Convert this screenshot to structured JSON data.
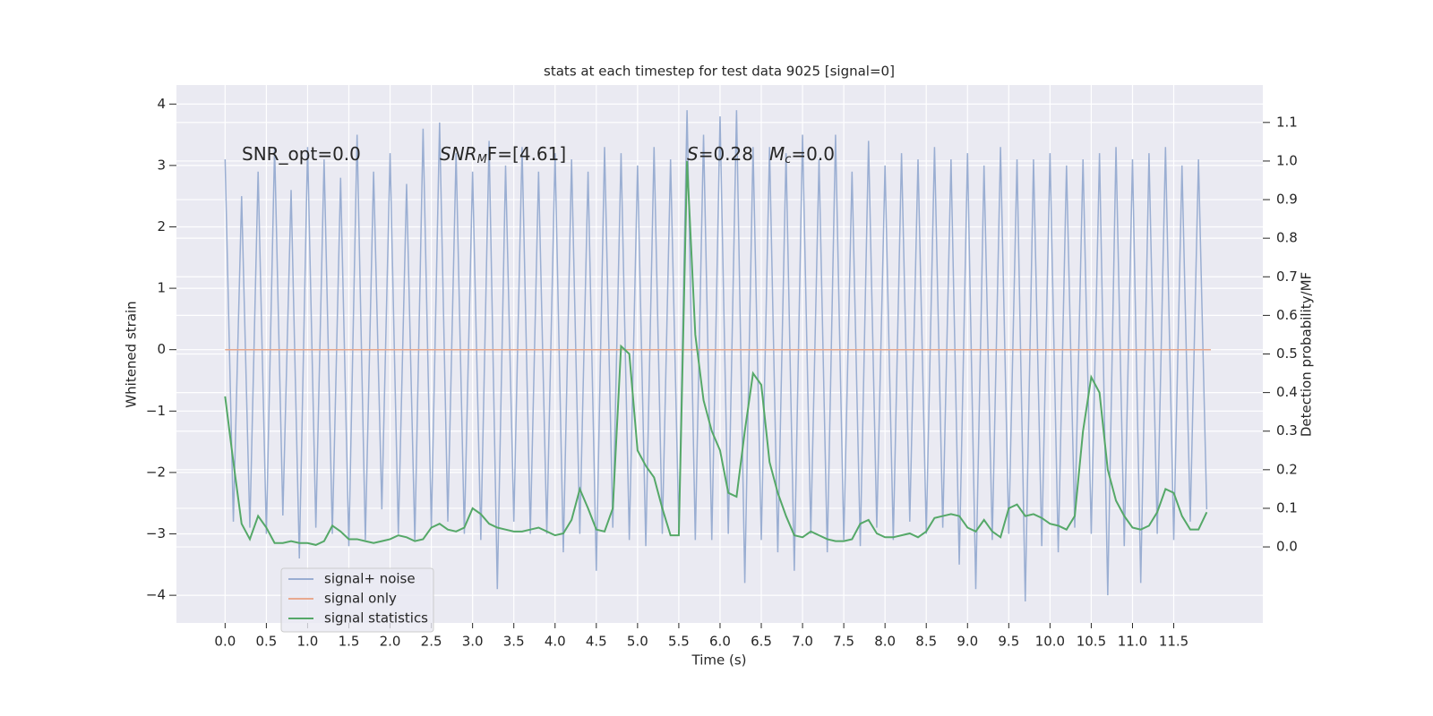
{
  "chart_data": {
    "type": "line",
    "title": "stats at each timestep for test data 9025 [signal=0]",
    "xlabel": "Time (s)",
    "ylabel": "Whitened strain",
    "y2label": "Detection probability/MF",
    "grid": true,
    "legend_position": "lower left",
    "xlim": [
      -0.59,
      12.58
    ],
    "ylim": [
      -4.45,
      4.31
    ],
    "y2lim": [
      -0.197,
      1.197
    ],
    "xticks": [
      {
        "value": 0,
        "label": "0.0"
      },
      {
        "value": 0.5,
        "label": "0.5"
      },
      {
        "value": 1,
        "label": "1.0"
      },
      {
        "value": 1.5,
        "label": "1.5"
      },
      {
        "value": 2,
        "label": "2.0"
      },
      {
        "value": 2.5,
        "label": "2.5"
      },
      {
        "value": 3,
        "label": "3.0"
      },
      {
        "value": 3.5,
        "label": "3.5"
      },
      {
        "value": 4,
        "label": "4.0"
      },
      {
        "value": 4.5,
        "label": "4.5"
      },
      {
        "value": 5,
        "label": "5.0"
      },
      {
        "value": 5.5,
        "label": "5.5"
      },
      {
        "value": 6,
        "label": "6.0"
      },
      {
        "value": 6.5,
        "label": "6.5"
      },
      {
        "value": 7,
        "label": "7.0"
      },
      {
        "value": 7.5,
        "label": "7.5"
      },
      {
        "value": 8,
        "label": "8.0"
      },
      {
        "value": 8.5,
        "label": "8.5"
      },
      {
        "value": 9,
        "label": "9.0"
      },
      {
        "value": 9.5,
        "label": "9.5"
      },
      {
        "value": 10,
        "label": "10.0"
      },
      {
        "value": 10.5,
        "label": "10.5"
      },
      {
        "value": 11,
        "label": "11.0"
      },
      {
        "value": 11.5,
        "label": "11.5"
      }
    ],
    "yticks": [
      {
        "value": -4,
        "label": "−4"
      },
      {
        "value": -3,
        "label": "−3"
      },
      {
        "value": -2,
        "label": "−2"
      },
      {
        "value": -1,
        "label": "−1"
      },
      0,
      1,
      2,
      3,
      4
    ],
    "y2ticks": [
      {
        "value": 0,
        "label": "0.0"
      },
      {
        "value": 0.1,
        "label": "0.1"
      },
      {
        "value": 0.2,
        "label": "0.2"
      },
      {
        "value": 0.3,
        "label": "0.3"
      },
      {
        "value": 0.4,
        "label": "0.4"
      },
      {
        "value": 0.5,
        "label": "0.5"
      },
      {
        "value": 0.6,
        "label": "0.6"
      },
      {
        "value": 0.7,
        "label": "0.7"
      },
      {
        "value": 0.8,
        "label": "0.8"
      },
      {
        "value": 0.9,
        "label": "0.9"
      },
      {
        "value": 1.0,
        "label": "1.0"
      },
      {
        "value": 1.1,
        "label": "1.1"
      }
    ],
    "annotations": [
      {
        "parts": [
          {
            "text": "SNR_opt=0.0"
          }
        ]
      },
      {
        "parts": [
          {
            "text": "SNR",
            "italic": true
          },
          {
            "text": "M",
            "italic": true,
            "sub": true
          },
          {
            "text": "F=[4.61]"
          }
        ]
      },
      {
        "parts": [
          {
            "text": "S",
            "italic": true
          },
          {
            "text": "=0.28"
          }
        ]
      },
      {
        "parts": [
          {
            "text": "M",
            "italic": true
          },
          {
            "text": "c",
            "italic": true,
            "sub": true
          },
          {
            "text": "=0.0"
          }
        ]
      }
    ],
    "x": [
      0,
      0.1,
      0.2,
      0.3,
      0.4,
      0.5,
      0.6,
      0.7,
      0.8,
      0.9,
      1,
      1.1,
      1.2,
      1.3,
      1.4,
      1.5,
      1.6,
      1.7,
      1.8,
      1.9,
      2,
      2.1,
      2.2,
      2.3,
      2.4,
      2.5,
      2.6,
      2.7,
      2.8,
      2.9,
      3,
      3.1,
      3.2,
      3.3,
      3.4,
      3.5,
      3.6,
      3.7,
      3.8,
      3.9,
      4,
      4.1,
      4.2,
      4.3,
      4.4,
      4.5,
      4.6,
      4.7,
      4.8,
      4.9,
      5,
      5.1,
      5.2,
      5.3,
      5.4,
      5.5,
      5.6,
      5.7,
      5.8,
      5.9,
      6,
      6.1,
      6.2,
      6.3,
      6.4,
      6.5,
      6.6,
      6.7,
      6.8,
      6.9,
      7,
      7.1,
      7.2,
      7.3,
      7.4,
      7.5,
      7.6,
      7.7,
      7.8,
      7.9,
      8,
      8.1,
      8.2,
      8.3,
      8.4,
      8.5,
      8.6,
      8.7,
      8.8,
      8.9,
      9,
      9.1,
      9.2,
      9.3,
      9.4,
      9.5,
      9.6,
      9.7,
      9.8,
      9.9,
      10,
      10.1,
      10.2,
      10.3,
      10.4,
      10.5,
      10.6,
      10.7,
      10.8,
      10.9,
      11,
      11.1,
      11.2,
      11.3,
      11.4,
      11.5,
      11.6,
      11.7,
      11.8,
      11.9
    ],
    "series": [
      {
        "name": "signal+ noise",
        "color": "#9aaed2",
        "axis": "y",
        "values": [
          3.1,
          -2.8,
          2.5,
          -2.9,
          2.9,
          -3.0,
          3.3,
          -2.7,
          2.6,
          -3.4,
          3.3,
          -2.9,
          3.1,
          -3.0,
          2.8,
          -3.2,
          3.5,
          -3.1,
          2.9,
          -2.6,
          3.2,
          -3.0,
          2.7,
          -3.1,
          3.6,
          -2.9,
          3.7,
          -2.8,
          3.2,
          -3.0,
          2.9,
          -3.1,
          3.4,
          -3.9,
          3.0,
          -2.8,
          3.3,
          -3.0,
          2.9,
          -3.0,
          3.2,
          -3.3,
          3.1,
          -3.0,
          2.9,
          -3.6,
          3.3,
          -2.9,
          3.2,
          -3.1,
          3.0,
          -3.2,
          3.3,
          -3.0,
          3.1,
          -2.9,
          3.9,
          -3.1,
          3.5,
          -3.1,
          3.8,
          -3.0,
          3.9,
          -3.8,
          3.3,
          -3.1,
          3.3,
          -3.3,
          3.2,
          -3.6,
          3.5,
          -3.0,
          3.1,
          -3.3,
          3.5,
          -3.1,
          2.9,
          -3.2,
          3.4,
          -2.9,
          3.0,
          -3.1,
          3.2,
          -2.8,
          3.1,
          -3.0,
          3.3,
          -2.9,
          3.1,
          -3.5,
          3.2,
          -3.9,
          3.0,
          -3.1,
          3.3,
          -3.0,
          3.1,
          -4.1,
          3.1,
          -3.2,
          3.2,
          -3.3,
          3.0,
          -2.9,
          3.1,
          -3.0,
          3.2,
          -4.0,
          3.3,
          -3.2,
          3.1,
          -3.8,
          3.2,
          -3.0,
          3.3,
          -3.1,
          3.0,
          -2.8,
          3.1,
          -2.6
        ]
      },
      {
        "name": "signal only",
        "color": "#e8a98f",
        "axis": "y",
        "x": [
          0,
          11.95
        ],
        "values": [
          0,
          0
        ]
      },
      {
        "name": "signal statistics",
        "color": "#55a868",
        "axis": "y2",
        "values": [
          0.39,
          0.22,
          0.06,
          0.02,
          0.08,
          0.05,
          0.01,
          0.01,
          0.015,
          0.01,
          0.01,
          0.005,
          0.015,
          0.055,
          0.04,
          0.02,
          0.02,
          0.015,
          0.01,
          0.015,
          0.02,
          0.03,
          0.025,
          0.015,
          0.02,
          0.05,
          0.06,
          0.045,
          0.04,
          0.05,
          0.1,
          0.085,
          0.06,
          0.05,
          0.045,
          0.04,
          0.04,
          0.045,
          0.05,
          0.04,
          0.03,
          0.035,
          0.07,
          0.15,
          0.1,
          0.045,
          0.04,
          0.1,
          0.52,
          0.5,
          0.25,
          0.21,
          0.18,
          0.1,
          0.03,
          0.03,
          1.0,
          0.55,
          0.38,
          0.3,
          0.25,
          0.14,
          0.13,
          0.3,
          0.45,
          0.42,
          0.22,
          0.14,
          0.08,
          0.03,
          0.025,
          0.04,
          0.03,
          0.02,
          0.015,
          0.015,
          0.02,
          0.06,
          0.07,
          0.035,
          0.025,
          0.025,
          0.03,
          0.035,
          0.025,
          0.04,
          0.075,
          0.08,
          0.085,
          0.08,
          0.05,
          0.04,
          0.07,
          0.04,
          0.025,
          0.1,
          0.11,
          0.08,
          0.085,
          0.075,
          0.06,
          0.055,
          0.045,
          0.08,
          0.3,
          0.44,
          0.4,
          0.2,
          0.12,
          0.08,
          0.05,
          0.045,
          0.055,
          0.09,
          0.15,
          0.14,
          0.08,
          0.045,
          0.045,
          0.09
        ]
      }
    ]
  }
}
